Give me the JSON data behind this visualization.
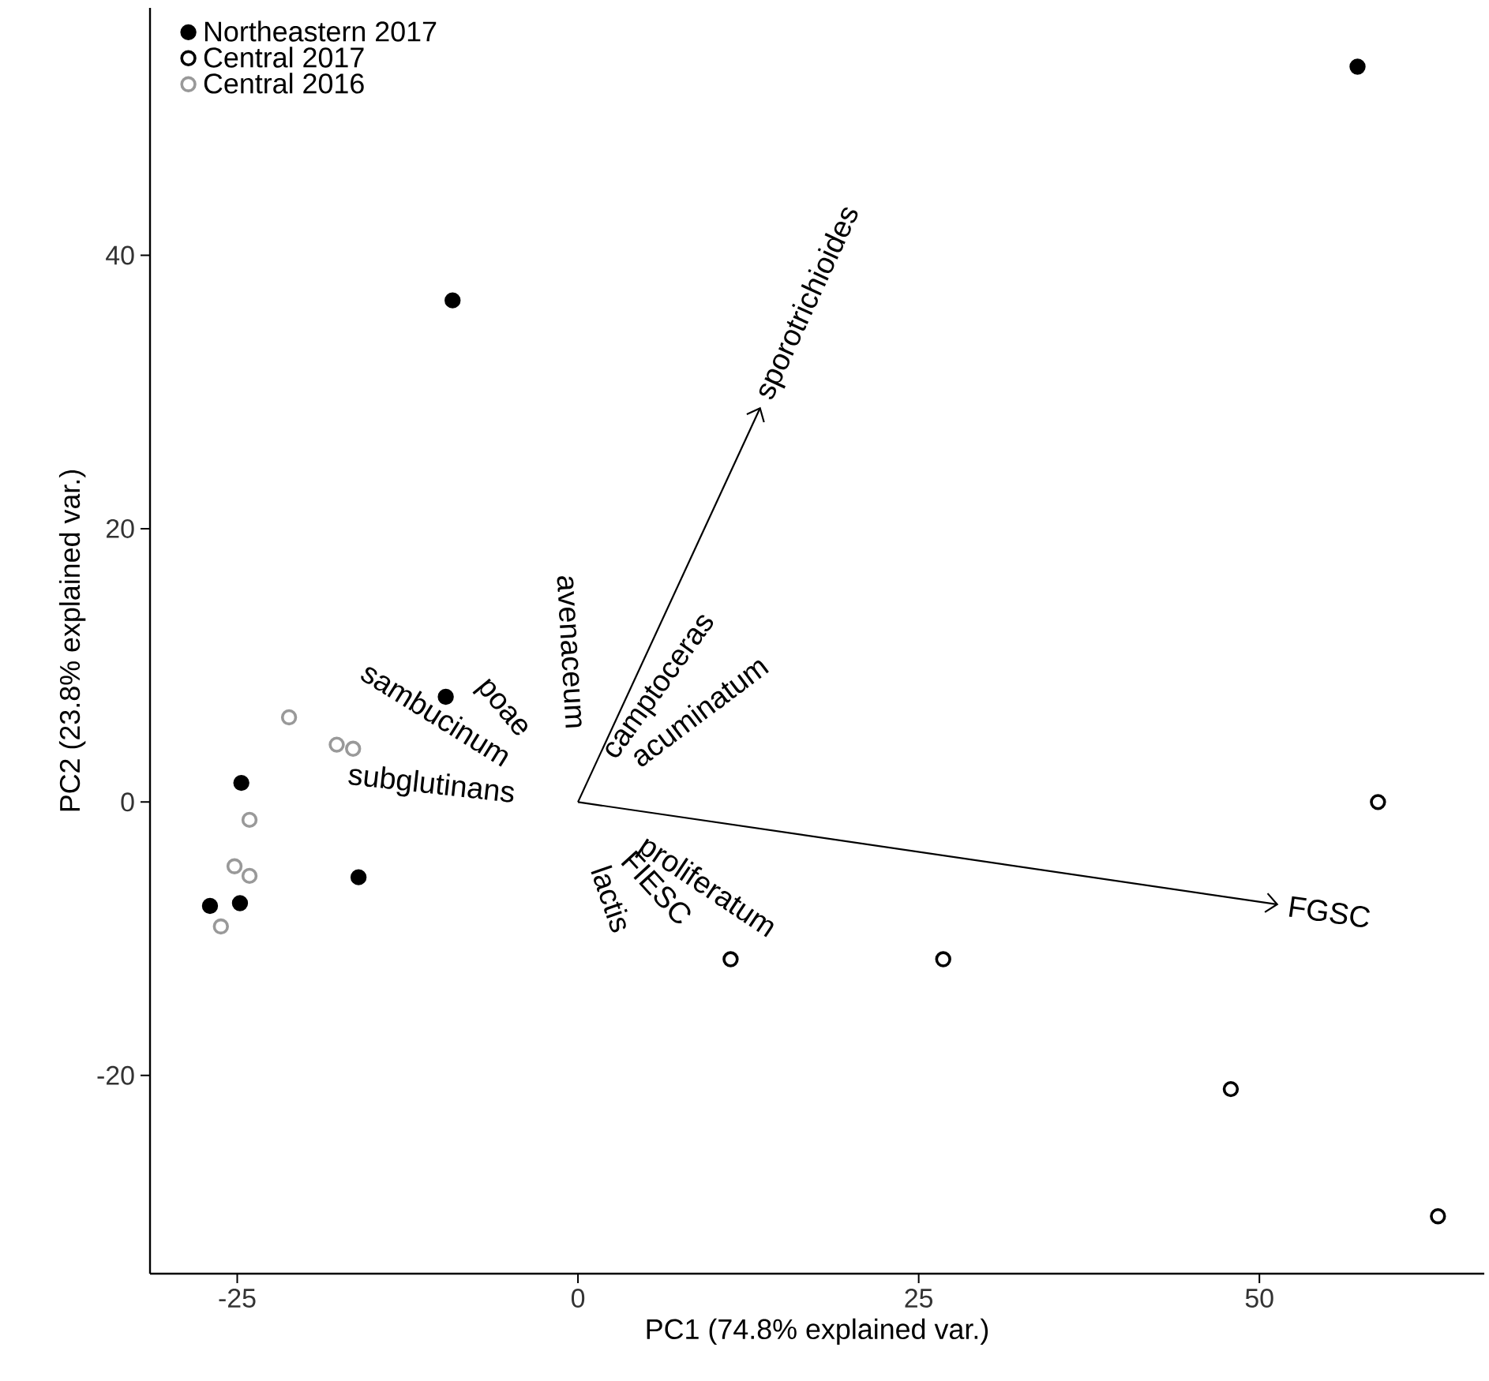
{
  "chart_data": {
    "type": "scatter",
    "xlabel": "PC1 (74.8% explained var.)",
    "ylabel": "PC2 (23.8% explained var.)",
    "xlim": [
      -31.4,
      66.5
    ],
    "ylim": [
      -34.5,
      58.1
    ],
    "xticks": [
      -25,
      0,
      25,
      50
    ],
    "yticks": [
      -20,
      0,
      20,
      40
    ],
    "grid": false,
    "legend": "top left",
    "series": [
      {
        "name": "Northeastern 2017",
        "color": "#000000",
        "marker": "circle",
        "x": [
          57.2,
          -9.2,
          -9.7,
          -24.7,
          -24.8,
          -27.0,
          -16.1
        ],
        "values": [
          53.8,
          36.7,
          7.7,
          1.4,
          -7.4,
          -7.6,
          -5.5
        ]
      },
      {
        "name": "Central 2017",
        "color": "#000000",
        "marker": "circle",
        "x": [
          11.2,
          26.8,
          58.7,
          47.9,
          63.1
        ],
        "values": [
          -11.5,
          -11.5,
          0.0,
          -21.0,
          -30.3
        ]
      },
      {
        "name": "Central 2016",
        "color": "#999999",
        "marker": "circle",
        "x": [
          -21.2,
          -17.7,
          -16.5,
          -24.1,
          -25.2,
          -24.1,
          -26.2
        ],
        "values": [
          6.2,
          4.2,
          3.9,
          -1.3,
          -4.7,
          -5.4,
          -9.1
        ]
      },
      {
        "type": "line",
        "color": "#000000",
        "marker": "none",
        "x": [
          0,
          13.4
        ],
        "values": [
          0,
          28.9
        ]
      },
      {
        "type": "line",
        "color": "#000000",
        "marker": "none",
        "x": [
          0,
          51.4
        ],
        "values": [
          0,
          -7.5
        ]
      }
    ],
    "annotations": [
      {
        "text": "sporotrichioides",
        "x": 13.4,
        "y": 28.9
      },
      {
        "text": "FGSC",
        "x": 51.4,
        "y": -7.5
      },
      "avenaceum",
      "poae",
      "sambucinum",
      "subglutinans",
      "camptoceras",
      "acuminatum",
      "proliferatum",
      "FIESC",
      "lactis"
    ]
  }
}
